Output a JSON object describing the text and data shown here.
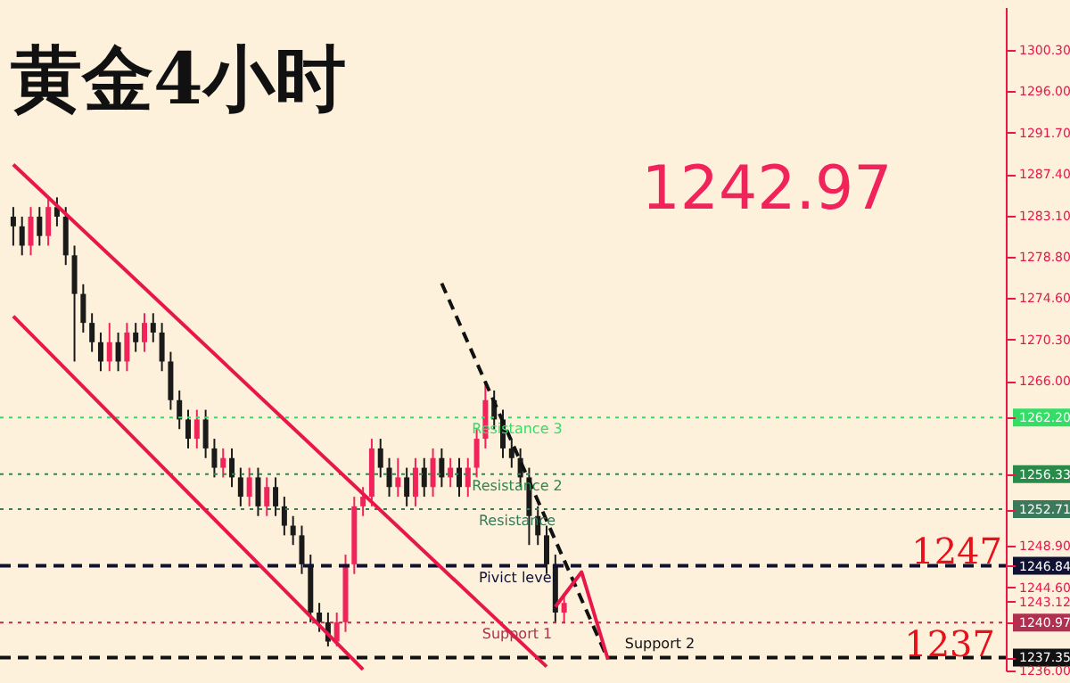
{
  "chart_data": {
    "type": "candlestick",
    "title": "黄金4小时",
    "categories": [
      null,
      null,
      null,
      null,
      null,
      null,
      null,
      null,
      null,
      null,
      null,
      null,
      null,
      null,
      null,
      null,
      null,
      null,
      null,
      null,
      null,
      null,
      null,
      null,
      null,
      null,
      null,
      null,
      null,
      null,
      null,
      null,
      null,
      null,
      null,
      null,
      null,
      null,
      null,
      null,
      null,
      null,
      null,
      null,
      null,
      null,
      null,
      null,
      null,
      null,
      null,
      null,
      null,
      null,
      null,
      null,
      null,
      null,
      null,
      null,
      null,
      null,
      null,
      null,
      null,
      null,
      null,
      null,
      null,
      null,
      null,
      null,
      null,
      null,
      null,
      null,
      null,
      null,
      null,
      null,
      null,
      null,
      null,
      null,
      null,
      null,
      null,
      null,
      null,
      null,
      null,
      null,
      null,
      null,
      null,
      null,
      null,
      null,
      null,
      null,
      null,
      null,
      null,
      null,
      null,
      null,
      null,
      null,
      null,
      null,
      null,
      null,
      null
    ],
    "ohlc": [
      [
        1283,
        1284,
        1280,
        1282
      ],
      [
        1282,
        1283,
        1279,
        1280
      ],
      [
        1280,
        1284,
        1279,
        1283
      ],
      [
        1283,
        1284,
        1280,
        1281
      ],
      [
        1281,
        1285,
        1280,
        1284
      ],
      [
        1284,
        1285,
        1282,
        1283
      ],
      [
        1283,
        1284,
        1278,
        1279
      ],
      [
        1279,
        1280,
        1268,
        1275
      ],
      [
        1275,
        1276,
        1271,
        1272
      ],
      [
        1272,
        1273,
        1269,
        1270
      ],
      [
        1270,
        1271,
        1267,
        1268
      ],
      [
        1268,
        1272,
        1267,
        1270
      ],
      [
        1270,
        1271,
        1267,
        1268
      ],
      [
        1268,
        1272,
        1267,
        1271
      ],
      [
        1271,
        1272,
        1269,
        1270
      ],
      [
        1270,
        1273,
        1269,
        1272
      ],
      [
        1272,
        1273,
        1270,
        1271
      ],
      [
        1271,
        1272,
        1267,
        1268
      ],
      [
        1268,
        1269,
        1263,
        1264
      ],
      [
        1264,
        1265,
        1261,
        1262
      ],
      [
        1262,
        1263,
        1259,
        1260
      ],
      [
        1260,
        1263,
        1259,
        1262
      ],
      [
        1262,
        1263,
        1258,
        1259
      ],
      [
        1259,
        1260,
        1256,
        1257
      ],
      [
        1257,
        1259,
        1256,
        1258
      ],
      [
        1258,
        1259,
        1255,
        1256
      ],
      [
        1256,
        1257,
        1253,
        1254
      ],
      [
        1254,
        1257,
        1253,
        1256
      ],
      [
        1256,
        1257,
        1252,
        1253
      ],
      [
        1253,
        1256,
        1252,
        1255
      ],
      [
        1255,
        1256,
        1252,
        1253
      ],
      [
        1253,
        1254,
        1250,
        1251
      ],
      [
        1251,
        1252,
        1249,
        1250
      ],
      [
        1250,
        1251,
        1246,
        1247
      ],
      [
        1247,
        1248,
        1241,
        1242
      ],
      [
        1242,
        1243,
        1240,
        1241
      ],
      [
        1241,
        1242,
        1238.5,
        1239
      ],
      [
        1239,
        1242,
        1238.5,
        1241
      ],
      [
        1241,
        1248,
        1240,
        1247
      ],
      [
        1247,
        1254,
        1246,
        1253
      ],
      [
        1253,
        1255,
        1252,
        1254
      ],
      [
        1254,
        1260,
        1253,
        1259
      ],
      [
        1259,
        1260,
        1256,
        1257
      ],
      [
        1257,
        1258,
        1254,
        1255
      ],
      [
        1255,
        1258,
        1254,
        1256
      ],
      [
        1256,
        1257,
        1253,
        1254
      ],
      [
        1254,
        1258,
        1253,
        1257
      ],
      [
        1257,
        1258,
        1254,
        1255
      ],
      [
        1255,
        1259,
        1254,
        1258
      ],
      [
        1258,
        1259,
        1255,
        1256
      ],
      [
        1256,
        1258,
        1255,
        1257
      ],
      [
        1257,
        1258,
        1254,
        1255
      ],
      [
        1255,
        1258,
        1254,
        1257
      ],
      [
        1257,
        1261,
        1256,
        1260
      ],
      [
        1260,
        1266,
        1259,
        1264
      ],
      [
        1264,
        1265,
        1261,
        1262
      ],
      [
        1262,
        1263,
        1258,
        1259
      ],
      [
        1259,
        1260,
        1257,
        1258
      ],
      [
        1258,
        1259,
        1255,
        1256
      ],
      [
        1256,
        1257,
        1249,
        1252
      ],
      [
        1252,
        1253,
        1249,
        1250
      ],
      [
        1250,
        1251,
        1246,
        1247
      ],
      [
        1247,
        1248,
        1241,
        1242
      ],
      [
        1242,
        1244,
        1241,
        1243
      ],
      null,
      null,
      null,
      null,
      null,
      null,
      null,
      null,
      null,
      null,
      null,
      null,
      null,
      null,
      null,
      null,
      null,
      null,
      null,
      null,
      null,
      null,
      null,
      null,
      null,
      null,
      null,
      null,
      null,
      null,
      null,
      null,
      null,
      null,
      null,
      null,
      null,
      null,
      null,
      null,
      null,
      null,
      null,
      null,
      null,
      null,
      null,
      null,
      null
    ],
    "colors": [
      "#1a1a1a",
      "#1a1a1a",
      "#f0245a",
      "#1a1a1a",
      "#f0245a",
      "#1a1a1a",
      "#1a1a1a",
      "#1a1a1a",
      "#1a1a1a",
      "#1a1a1a",
      "#1a1a1a",
      "#f0245a",
      "#1a1a1a",
      "#f0245a",
      "#1a1a1a",
      "#f0245a",
      "#1a1a1a",
      "#1a1a1a",
      "#1a1a1a",
      "#1a1a1a",
      "#1a1a1a",
      "#f0245a",
      "#1a1a1a",
      "#1a1a1a",
      "#f0245a",
      "#1a1a1a",
      "#1a1a1a",
      "#f0245a",
      "#1a1a1a",
      "#f0245a",
      "#1a1a1a",
      "#1a1a1a",
      "#1a1a1a",
      "#1a1a1a",
      "#1a1a1a",
      "#1a1a1a",
      "#1a1a1a",
      "#f0245a",
      "#f0245a",
      "#f0245a",
      "#f0245a",
      "#f0245a",
      "#1a1a1a",
      "#1a1a1a",
      "#f0245a",
      "#1a1a1a",
      "#f0245a",
      "#1a1a1a",
      "#f0245a",
      "#1a1a1a",
      "#f0245a",
      "#1a1a1a",
      "#f0245a",
      "#f0245a",
      "#f0245a",
      "#1a1a1a",
      "#1a1a1a",
      "#1a1a1a",
      "#1a1a1a",
      "#1a1a1a",
      "#1a1a1a",
      "#1a1a1a",
      "#1a1a1a",
      "#f0245a",
      null,
      null,
      null,
      null,
      null,
      null,
      null,
      null,
      null,
      null,
      null,
      null,
      null,
      null,
      null,
      null,
      null,
      null,
      null,
      null,
      null,
      null,
      null,
      null,
      null,
      null,
      null,
      null,
      null,
      null,
      null,
      null,
      null,
      null,
      null,
      null,
      null,
      null,
      null,
      null,
      null,
      null,
      null,
      null,
      null,
      null,
      null,
      null,
      null
    ],
    "series": [
      {
        "type": "line",
        "color": "#e8174a",
        "line_style": "solid",
        "values": [
          1288.4,
          null,
          null,
          null,
          null,
          null,
          null,
          null,
          null,
          null,
          null,
          null,
          null,
          null,
          null,
          null,
          null,
          null,
          null,
          null,
          null,
          null,
          null,
          null,
          null,
          null,
          null,
          null,
          null,
          null,
          null,
          null,
          null,
          null,
          null,
          null,
          null,
          null,
          null,
          null,
          null,
          null,
          null,
          null,
          null,
          null,
          null,
          null,
          null,
          null,
          null,
          null,
          null,
          null,
          null,
          null,
          null,
          null,
          null,
          null,
          null,
          1236.4,
          null,
          null,
          null,
          null,
          null,
          null,
          null,
          null,
          null,
          null,
          null,
          null,
          null,
          null,
          null,
          null,
          null,
          null,
          null,
          null,
          null,
          null,
          null,
          null,
          null,
          null,
          null,
          null,
          null,
          null,
          null,
          null,
          null,
          null,
          null,
          null,
          null,
          null,
          null,
          null,
          null,
          null,
          null,
          null,
          null,
          null,
          null,
          null,
          null,
          null,
          null
        ]
      },
      {
        "type": "line",
        "color": "#e8174a",
        "line_style": "solid",
        "values": [
          1272.7,
          null,
          null,
          null,
          null,
          null,
          null,
          null,
          null,
          null,
          null,
          null,
          null,
          null,
          null,
          null,
          null,
          null,
          null,
          null,
          null,
          null,
          null,
          null,
          null,
          null,
          null,
          null,
          null,
          null,
          null,
          null,
          null,
          null,
          null,
          null,
          null,
          null,
          null,
          null,
          1236.1,
          null,
          null,
          null,
          null,
          null,
          null,
          null,
          null,
          null,
          null,
          null,
          null,
          null,
          null,
          null,
          null,
          null,
          null,
          null,
          null,
          null,
          null,
          null,
          null,
          null,
          null,
          null,
          null,
          null,
          null,
          null,
          null,
          null,
          null,
          null,
          null,
          null,
          null,
          null,
          null,
          null,
          null,
          null,
          null,
          null,
          null,
          null,
          null,
          null,
          null,
          null,
          null,
          null,
          null,
          null,
          null,
          null,
          null,
          null,
          null,
          null,
          null,
          null,
          null,
          null,
          null,
          null,
          null,
          null,
          null,
          null,
          null
        ]
      },
      {
        "type": "line",
        "color": "#111111",
        "line_style": "dashed",
        "values": [
          null,
          null,
          null,
          null,
          null,
          null,
          null,
          null,
          null,
          null,
          null,
          null,
          null,
          null,
          null,
          null,
          null,
          null,
          null,
          null,
          null,
          null,
          null,
          null,
          null,
          null,
          null,
          null,
          null,
          null,
          null,
          null,
          null,
          null,
          null,
          null,
          null,
          null,
          null,
          null,
          null,
          null,
          null,
          null,
          null,
          null,
          null,
          null,
          null,
          1276.1,
          null,
          null,
          null,
          null,
          null,
          null,
          null,
          null,
          null,
          null,
          null,
          null,
          null,
          null,
          null,
          null,
          null,
          null,
          1237.2,
          null,
          null,
          null,
          null,
          null,
          null,
          null,
          null,
          null,
          null,
          null,
          null,
          null,
          null,
          null,
          null,
          null,
          null,
          null,
          null,
          null,
          null,
          null,
          null,
          null,
          null,
          null,
          null,
          null,
          null,
          null,
          null,
          null,
          null,
          null,
          null,
          null,
          null,
          null,
          null,
          null,
          null,
          null,
          null
        ]
      },
      {
        "type": "line",
        "color": "#e8174a",
        "line_style": "solid",
        "values": [
          null,
          null,
          null,
          null,
          null,
          null,
          null,
          null,
          null,
          null,
          null,
          null,
          null,
          null,
          null,
          null,
          null,
          null,
          null,
          null,
          null,
          null,
          null,
          null,
          null,
          null,
          null,
          null,
          null,
          null,
          null,
          null,
          null,
          null,
          null,
          null,
          null,
          null,
          null,
          null,
          null,
          null,
          null,
          null,
          null,
          null,
          null,
          null,
          null,
          null,
          null,
          null,
          null,
          null,
          null,
          null,
          null,
          null,
          null,
          null,
          null,
          null,
          1242.6,
          null,
          null,
          1246.2,
          null,
          null,
          1237.2,
          null,
          null,
          null,
          null,
          null,
          null,
          null,
          null,
          null,
          null,
          null,
          null,
          null,
          null,
          null,
          null,
          null,
          null,
          null,
          null,
          null,
          null,
          null,
          null,
          null,
          null,
          null,
          null,
          null,
          null,
          null,
          null,
          null,
          null,
          null,
          null,
          null,
          null,
          null,
          null,
          null,
          null,
          null,
          null
        ]
      }
    ],
    "ref_lines": [
      {
        "axis": "y",
        "value": 1262.2,
        "label": "Resistance 3",
        "color": "#33dd66",
        "line_style": "dotted"
      },
      {
        "axis": "y",
        "value": 1256.33,
        "label": "Resistance 2",
        "color": "#2a8a4a",
        "line_style": "dotted"
      },
      {
        "axis": "y",
        "value": 1252.71,
        "label": "Resistance",
        "color": "#3a7a5a",
        "line_style": "dotted"
      },
      {
        "axis": "y",
        "value": 1246.84,
        "label": "Pivict level",
        "color": "#111133",
        "line_style": "dashed"
      },
      {
        "axis": "y",
        "value": 1240.97,
        "label": "Support 1",
        "color": "#b03050",
        "line_style": "dotted"
      },
      {
        "axis": "y",
        "value": 1237.35,
        "label": "Support 2",
        "color": "#111111",
        "line_style": "dashed"
      }
    ],
    "annotations": [
      "1242.97",
      "1247",
      "1237"
    ],
    "ylim": [
      1236,
      1304.7
    ],
    "yticks": [
      {
        "value": 1236,
        "label": "1236.00"
      },
      {
        "value": 1237.35,
        "label": "1237.35"
      },
      {
        "value": 1240.97,
        "label": "1240.97"
      },
      {
        "value": 1243.12,
        "label": "1243.12"
      },
      {
        "value": 1244.6,
        "label": "1244.60"
      },
      {
        "value": 1246.84,
        "label": "1246.84"
      },
      {
        "value": 1248.9,
        "label": "1248.90"
      },
      {
        "value": 1252.71,
        "label": "1252.71"
      },
      {
        "value": 1256.33,
        "label": "1256.33"
      },
      {
        "value": 1262.2,
        "label": "1262.20"
      },
      {
        "value": 1266,
        "label": "1266.00"
      },
      {
        "value": 1270.3,
        "label": "1270.30"
      },
      {
        "value": 1274.6,
        "label": "1274.60"
      },
      {
        "value": 1278.8,
        "label": "1278.80"
      },
      {
        "value": 1283.1,
        "label": "1283.10"
      },
      {
        "value": 1287.4,
        "label": "1287.40"
      },
      {
        "value": 1291.7,
        "label": "1291.70"
      },
      {
        "value": 1296,
        "label": "1296.00"
      },
      {
        "value": 1300.3,
        "label": "1300.30"
      }
    ],
    "tick_labels": "y",
    "grid": false
  }
}
